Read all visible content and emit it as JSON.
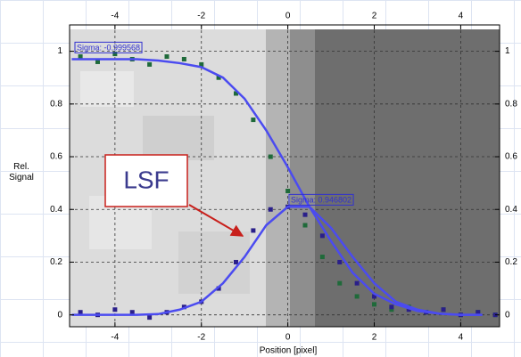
{
  "chart_data": {
    "type": "scatter",
    "xlabel": "Position [pixel]",
    "ylabel": "Rel. Signal",
    "annotations": [
      "Sigma: -0.999568",
      "Sigma: 0.946802",
      "LSF"
    ],
    "xlim": [
      -5.05,
      4.9
    ],
    "ylim": [
      -0.045,
      1.1
    ],
    "xticks": [
      -4,
      -2,
      0,
      2,
      4
    ],
    "yticks": [
      0,
      0.2,
      0.4,
      0.6,
      0.8,
      1
    ],
    "grid": true,
    "series": [
      {
        "style": "points",
        "color": "#1f6a3a",
        "x": [
          -4.8,
          -4.4,
          -4,
          -3.6,
          -3.2,
          -2.8,
          -2.4,
          -2,
          -1.6,
          -1.2,
          -0.8,
          -0.4,
          0,
          0.4,
          0.8,
          1.2,
          1.6,
          2,
          2.4,
          2.8,
          3.2,
          3.6,
          4,
          4.4,
          4.8
        ],
        "values": [
          0.98,
          0.96,
          0.99,
          0.97,
          0.95,
          0.98,
          0.97,
          0.95,
          0.9,
          0.84,
          0.74,
          0.6,
          0.47,
          0.34,
          0.22,
          0.12,
          0.07,
          0.04,
          0.02,
          0.03,
          0.01,
          0.02,
          0.0,
          0.01,
          0.0
        ]
      },
      {
        "style": "points",
        "color": "#2a1f8a",
        "x": [
          -4.8,
          -4.4,
          -4,
          -3.6,
          -3.2,
          -2.8,
          -2.4,
          -2,
          -1.6,
          -1.2,
          -0.8,
          -0.4,
          0,
          0.4,
          0.8,
          1.2,
          1.6,
          2,
          2.4,
          2.8,
          3.2,
          3.6,
          4,
          4.4,
          4.8
        ],
        "values": [
          0.01,
          0.0,
          0.02,
          0.01,
          -0.01,
          0.01,
          0.03,
          0.05,
          0.1,
          0.2,
          0.32,
          0.4,
          0.41,
          0.38,
          0.3,
          0.2,
          0.12,
          0.07,
          0.03,
          0.02,
          0.01,
          0.02,
          0.0,
          0.01,
          0.0
        ]
      },
      {
        "style": "line",
        "color": "#4b4bf0",
        "x": [
          -5,
          -4.5,
          -4,
          -3.5,
          -3,
          -2.5,
          -2,
          -1.5,
          -1,
          -0.5,
          0,
          0.5,
          1,
          1.5,
          2,
          2.5,
          3,
          3.5,
          4,
          4.5
        ],
        "values": [
          0.97,
          0.97,
          0.97,
          0.97,
          0.965,
          0.955,
          0.94,
          0.9,
          0.82,
          0.7,
          0.56,
          0.41,
          0.28,
          0.16,
          0.08,
          0.04,
          0.015,
          0.005,
          0.0,
          0.0
        ]
      },
      {
        "style": "line",
        "color": "#4b4bf0",
        "x": [
          -5,
          -4.5,
          -4,
          -3.5,
          -3,
          -2.5,
          -2,
          -1.5,
          -1,
          -0.5,
          0,
          0.5,
          1,
          1.5,
          2,
          2.5,
          3,
          3.5,
          4,
          4.5
        ],
        "values": [
          0,
          0,
          0,
          0,
          0.003,
          0.02,
          0.05,
          0.12,
          0.22,
          0.34,
          0.41,
          0.41,
          0.33,
          0.22,
          0.12,
          0.05,
          0.02,
          0.005,
          0,
          0
        ]
      }
    ]
  }
}
